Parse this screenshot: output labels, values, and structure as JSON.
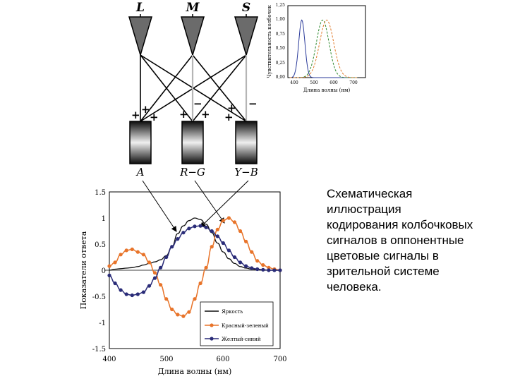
{
  "cones": {
    "labels": [
      "L",
      "M",
      "S"
    ],
    "channels": [
      "A",
      "R−G",
      "Y−B"
    ],
    "signs": [
      "+",
      "+",
      "+",
      "−",
      "+",
      "+",
      "+",
      "−",
      "+"
    ]
  },
  "caption_lines": [
    "Схематическая",
    "иллюстрация",
    "кодирования колбочковых",
    "сигналов в оппонентные",
    "цветовые сигналы в",
    "зрительной системе",
    "человека."
  ],
  "chart_data": [
    {
      "id": "sensitivity",
      "type": "line",
      "ylabel": "Чувствительность колбочек",
      "xlabel": "Длина волны (нм)",
      "xlim": [
        370,
        760
      ],
      "ylim": [
        0,
        1.25
      ],
      "xticks": [
        "400",
        "500",
        "600",
        "700"
      ],
      "yticks": [
        "0,00",
        "0,25",
        "0,50",
        "0,75",
        "1,00",
        "1,25"
      ],
      "colors": {
        "S": "#2a3a9a",
        "M": "#2f8a2f",
        "L": "#e07a2a"
      },
      "series": [
        {
          "name": "S",
          "peak": 440,
          "width": 22
        },
        {
          "name": "M",
          "peak": 545,
          "width": 45
        },
        {
          "name": "L",
          "peak": 565,
          "width": 50
        }
      ]
    },
    {
      "id": "opponent",
      "type": "line",
      "ylabel": "Показатели ответа",
      "xlabel": "Длина волны (нм)",
      "xlim": [
        400,
        700
      ],
      "ylim": [
        -1.5,
        1.5
      ],
      "xticks": [
        "400",
        "500",
        "600",
        "700"
      ],
      "yticks": [
        "1.5",
        "1",
        "0.5",
        "0",
        "-0.5",
        "-1",
        "-1.5"
      ],
      "legend": [
        "Яркость",
        "Красный-зеленый",
        "Желтый-синий"
      ],
      "colors": {
        "brightness": "#111111",
        "red_green": "#e8742a",
        "yellow_blue": "#2a2c78"
      },
      "x": [
        400,
        410,
        420,
        430,
        440,
        450,
        460,
        470,
        480,
        490,
        500,
        510,
        520,
        530,
        540,
        550,
        560,
        570,
        580,
        590,
        600,
        610,
        620,
        630,
        640,
        650,
        660,
        670,
        680,
        690,
        700
      ],
      "series": [
        {
          "name": "Яркость",
          "values": [
            0.0,
            0.02,
            0.03,
            0.04,
            0.05,
            0.07,
            0.1,
            0.13,
            0.16,
            0.2,
            0.28,
            0.45,
            0.7,
            0.85,
            0.95,
            1.0,
            0.97,
            0.88,
            0.72,
            0.52,
            0.35,
            0.22,
            0.13,
            0.07,
            0.04,
            0.02,
            0.01,
            0.0,
            0.0,
            0.0,
            0.0
          ]
        },
        {
          "name": "Красный-зеленый",
          "values": [
            0.08,
            0.15,
            0.3,
            0.38,
            0.4,
            0.35,
            0.3,
            0.15,
            -0.05,
            -0.28,
            -0.55,
            -0.75,
            -0.85,
            -0.88,
            -0.8,
            -0.55,
            -0.25,
            0.05,
            0.45,
            0.78,
            0.95,
            1.0,
            0.92,
            0.75,
            0.55,
            0.35,
            0.18,
            0.1,
            0.05,
            0.02,
            0.0
          ]
        },
        {
          "name": "Желтый-синий",
          "values": [
            -0.1,
            -0.25,
            -0.38,
            -0.46,
            -0.48,
            -0.46,
            -0.42,
            -0.3,
            -0.15,
            0.05,
            0.25,
            0.45,
            0.6,
            0.72,
            0.8,
            0.84,
            0.85,
            0.82,
            0.75,
            0.65,
            0.52,
            0.38,
            0.25,
            0.15,
            0.08,
            0.04,
            0.02,
            0.01,
            0.0,
            0.0,
            0.0
          ]
        }
      ]
    }
  ]
}
